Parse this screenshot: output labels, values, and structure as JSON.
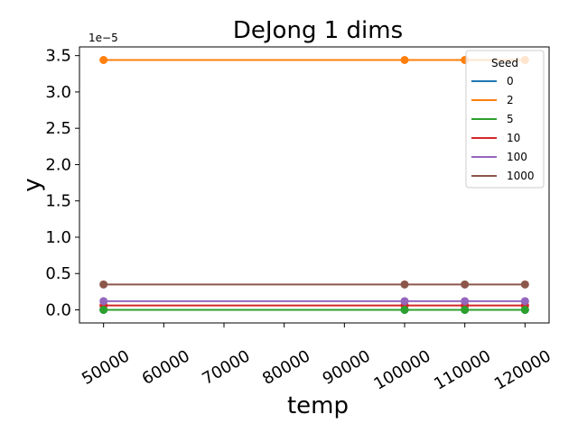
{
  "chart_data": {
    "type": "line",
    "title": "DeJong 1 dims",
    "xlabel": "temp",
    "ylabel": "y",
    "y_offset_label": "1e−5",
    "x": [
      50000,
      100000,
      110000,
      120000
    ],
    "xlim": [
      46000,
      124000
    ],
    "ylim": [
      -0.18,
      3.62
    ],
    "x_ticks": [
      50000,
      60000,
      70000,
      80000,
      90000,
      100000,
      110000,
      120000
    ],
    "x_tick_labels": [
      "50000",
      "60000",
      "70000",
      "80000",
      "90000",
      "100000",
      "110000",
      "120000"
    ],
    "y_ticks": [
      0.0,
      0.5,
      1.0,
      1.5,
      2.0,
      2.5,
      3.0,
      3.5
    ],
    "y_tick_labels": [
      "0.0",
      "0.5",
      "1.0",
      "1.5",
      "2.0",
      "2.5",
      "3.0",
      "3.5"
    ],
    "grid": false,
    "legend": {
      "title": "Seed",
      "placement": "top-right"
    },
    "series": [
      {
        "name": "0",
        "color": "#1f77b4",
        "values": [
          0.0,
          0.0,
          0.0,
          0.0
        ]
      },
      {
        "name": "2",
        "color": "#ff7f0e",
        "values": [
          3.44,
          3.44,
          3.44,
          3.44
        ]
      },
      {
        "name": "5",
        "color": "#2ca02c",
        "values": [
          0.0,
          0.0,
          0.0,
          0.0
        ]
      },
      {
        "name": "10",
        "color": "#d62728",
        "values": [
          0.06,
          0.06,
          0.06,
          0.06
        ]
      },
      {
        "name": "100",
        "color": "#9467bd",
        "values": [
          0.12,
          0.12,
          0.12,
          0.12
        ]
      },
      {
        "name": "1000",
        "color": "#8c564b",
        "values": [
          0.35,
          0.35,
          0.35,
          0.35
        ]
      }
    ],
    "draw_order": [
      "0",
      "2",
      "10",
      "100",
      "1000",
      "5"
    ]
  }
}
